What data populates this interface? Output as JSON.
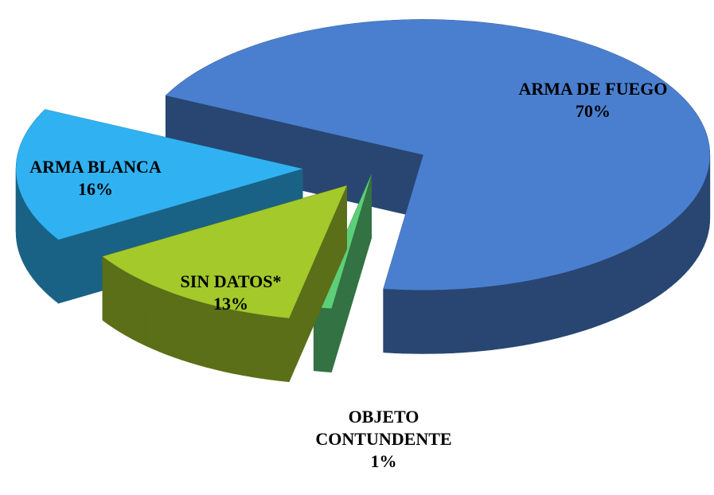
{
  "chart_data": {
    "type": "pie3d",
    "categories": [
      "ARMA DE FUEGO",
      "OBJETO CONTUNDENTE",
      "SIN DATOS*",
      "ARMA BLANCA"
    ],
    "values": [
      70,
      1,
      13,
      16
    ],
    "value_labels": [
      "70%",
      "1%",
      "13%",
      "16%"
    ],
    "colors": [
      "#4a7fcf",
      "#5ccf78",
      "#a3c92a",
      "#30b2f2"
    ]
  }
}
